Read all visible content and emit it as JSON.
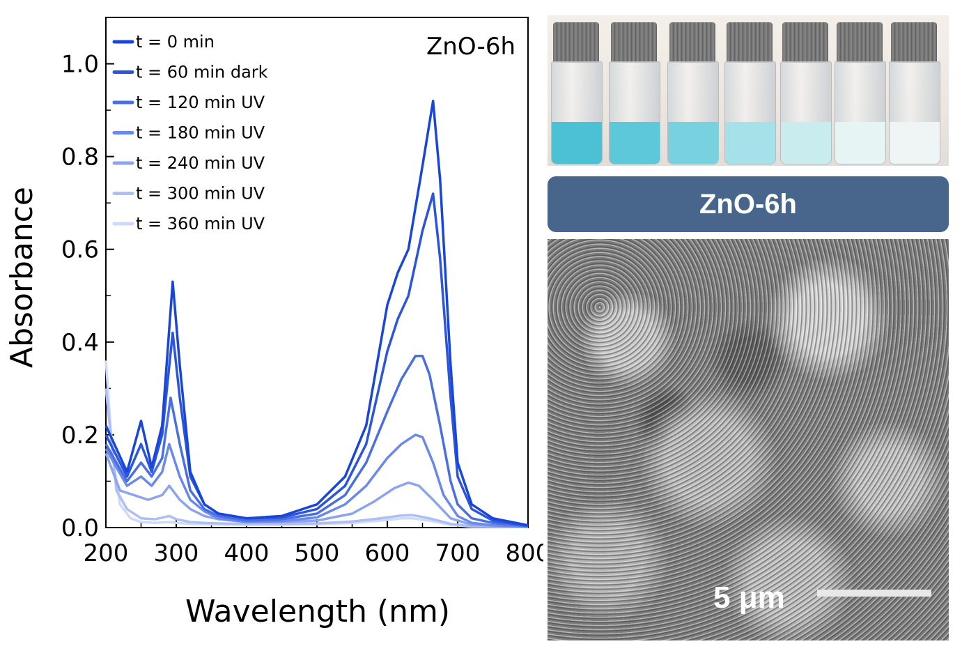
{
  "chart_data": {
    "type": "line",
    "title": "ZnO-6h",
    "xlabel": "Wavelength (nm)",
    "ylabel": "Absorbance",
    "xlim": [
      200,
      800
    ],
    "ylim": [
      0,
      1.1
    ],
    "x_ticks": [
      "200",
      "300",
      "400",
      "500",
      "600",
      "700",
      "800"
    ],
    "y_ticks": [
      "0.0",
      "0.2",
      "0.4",
      "0.6",
      "0.8",
      "1.0"
    ],
    "legend_position": "top-left",
    "grid": false,
    "series": [
      {
        "name": "t = 0 min",
        "color": "#1a46d8",
        "x": [
          200,
          230,
          250,
          265,
          280,
          295,
          305,
          320,
          340,
          360,
          400,
          450,
          500,
          540,
          570,
          600,
          615,
          630,
          650,
          665,
          675,
          690,
          700,
          720,
          750,
          800
        ],
        "y": [
          0.22,
          0.12,
          0.23,
          0.13,
          0.22,
          0.53,
          0.35,
          0.12,
          0.05,
          0.03,
          0.02,
          0.025,
          0.05,
          0.11,
          0.22,
          0.48,
          0.55,
          0.6,
          0.78,
          0.92,
          0.75,
          0.35,
          0.14,
          0.05,
          0.02,
          0.005
        ]
      },
      {
        "name": "t = 60 min dark",
        "color": "#2b55dc",
        "x": [
          200,
          230,
          250,
          265,
          280,
          295,
          305,
          320,
          340,
          360,
          400,
          450,
          500,
          540,
          570,
          600,
          615,
          630,
          650,
          665,
          675,
          690,
          700,
          720,
          750,
          800
        ],
        "y": [
          0.2,
          0.11,
          0.18,
          0.12,
          0.2,
          0.42,
          0.28,
          0.11,
          0.05,
          0.03,
          0.02,
          0.022,
          0.04,
          0.09,
          0.18,
          0.38,
          0.45,
          0.5,
          0.64,
          0.72,
          0.58,
          0.28,
          0.11,
          0.04,
          0.015,
          0.004
        ]
      },
      {
        "name": "t = 120 min UV",
        "color": "#4a6fe2",
        "x": [
          200,
          230,
          250,
          265,
          280,
          292,
          305,
          320,
          340,
          360,
          400,
          450,
          500,
          540,
          570,
          600,
          620,
          640,
          650,
          660,
          675,
          690,
          700,
          720,
          750,
          800
        ],
        "y": [
          0.18,
          0.1,
          0.14,
          0.11,
          0.15,
          0.28,
          0.18,
          0.08,
          0.04,
          0.025,
          0.015,
          0.018,
          0.03,
          0.07,
          0.14,
          0.25,
          0.32,
          0.37,
          0.37,
          0.33,
          0.22,
          0.1,
          0.05,
          0.02,
          0.01,
          0.003
        ]
      },
      {
        "name": "t = 180 min UV",
        "color": "#6b89e8",
        "x": [
          200,
          230,
          250,
          265,
          280,
          290,
          305,
          320,
          340,
          360,
          400,
          450,
          500,
          540,
          570,
          600,
          620,
          640,
          650,
          665,
          680,
          700,
          720,
          750,
          800
        ],
        "y": [
          0.17,
          0.09,
          0.11,
          0.09,
          0.12,
          0.18,
          0.11,
          0.06,
          0.035,
          0.02,
          0.012,
          0.014,
          0.022,
          0.05,
          0.09,
          0.15,
          0.18,
          0.2,
          0.195,
          0.14,
          0.07,
          0.025,
          0.01,
          0.005,
          0.002
        ]
      },
      {
        "name": "t = 240 min UV",
        "color": "#8ca3ee",
        "x": [
          200,
          220,
          240,
          260,
          280,
          290,
          305,
          320,
          340,
          360,
          400,
          450,
          500,
          550,
          580,
          610,
          630,
          645,
          665,
          690,
          720,
          800
        ],
        "y": [
          0.16,
          0.08,
          0.07,
          0.06,
          0.07,
          0.09,
          0.06,
          0.04,
          0.025,
          0.018,
          0.012,
          0.012,
          0.015,
          0.03,
          0.055,
          0.085,
          0.097,
          0.09,
          0.06,
          0.02,
          0.006,
          0.002
        ]
      },
      {
        "name": "t = 300 min UV",
        "color": "#aebff3",
        "x": [
          200,
          215,
          230,
          250,
          270,
          290,
          300,
          320,
          340,
          360,
          400,
          450,
          500,
          550,
          590,
          620,
          635,
          660,
          690,
          720,
          800
        ],
        "y": [
          0.3,
          0.08,
          0.04,
          0.02,
          0.018,
          0.025,
          0.018,
          0.012,
          0.01,
          0.009,
          0.008,
          0.008,
          0.009,
          0.013,
          0.02,
          0.026,
          0.027,
          0.02,
          0.008,
          0.003,
          0.001
        ]
      },
      {
        "name": "t = 360 min UV",
        "color": "#cfdaf8",
        "x": [
          200,
          210,
          220,
          235,
          250,
          270,
          290,
          300,
          320,
          350,
          400,
          450,
          500,
          550,
          590,
          620,
          635,
          660,
          690,
          720,
          800
        ],
        "y": [
          0.36,
          0.15,
          0.05,
          0.02,
          0.012,
          0.01,
          0.012,
          0.01,
          0.008,
          0.007,
          0.006,
          0.006,
          0.007,
          0.01,
          0.015,
          0.02,
          0.02,
          0.015,
          0.006,
          0.002,
          0.001
        ]
      }
    ]
  },
  "photo": {
    "vial_colors": [
      "#4cc1d6",
      "#5cc8da",
      "#78d1df",
      "#a6e0e8",
      "#c9ecef",
      "#e6f4f4",
      "#eef5f4"
    ]
  },
  "banner": {
    "label": "ZnO-6h"
  },
  "sem": {
    "scale_label": "5 μm"
  }
}
